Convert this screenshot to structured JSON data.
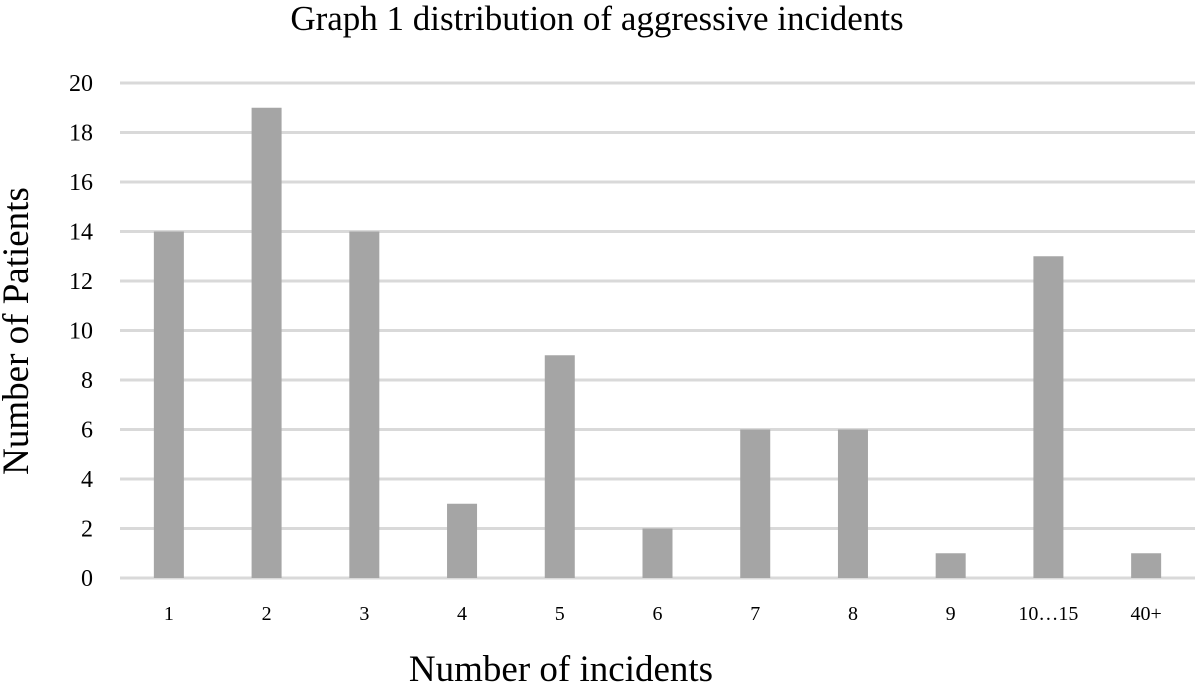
{
  "chart_data": {
    "type": "bar",
    "title": "Graph 1 distribution of aggressive incidents",
    "xlabel": "Number of incidents",
    "ylabel": "Number of Patients",
    "categories": [
      "1",
      "2",
      "3",
      "4",
      "5",
      "6",
      "7",
      "8",
      "9",
      "10…15",
      "40+"
    ],
    "values": [
      14,
      19,
      14,
      3,
      9,
      2,
      6,
      6,
      1,
      13,
      1
    ],
    "ylim": [
      0,
      20
    ],
    "y_ticks": [
      0,
      2,
      4,
      6,
      8,
      10,
      12,
      14,
      16,
      18,
      20
    ],
    "grid": "horizontal",
    "legend": "none",
    "colors": {
      "bar": "#a5a5a5",
      "grid": "#d9d9d9",
      "text": "#000000",
      "background": "#ffffff"
    }
  }
}
